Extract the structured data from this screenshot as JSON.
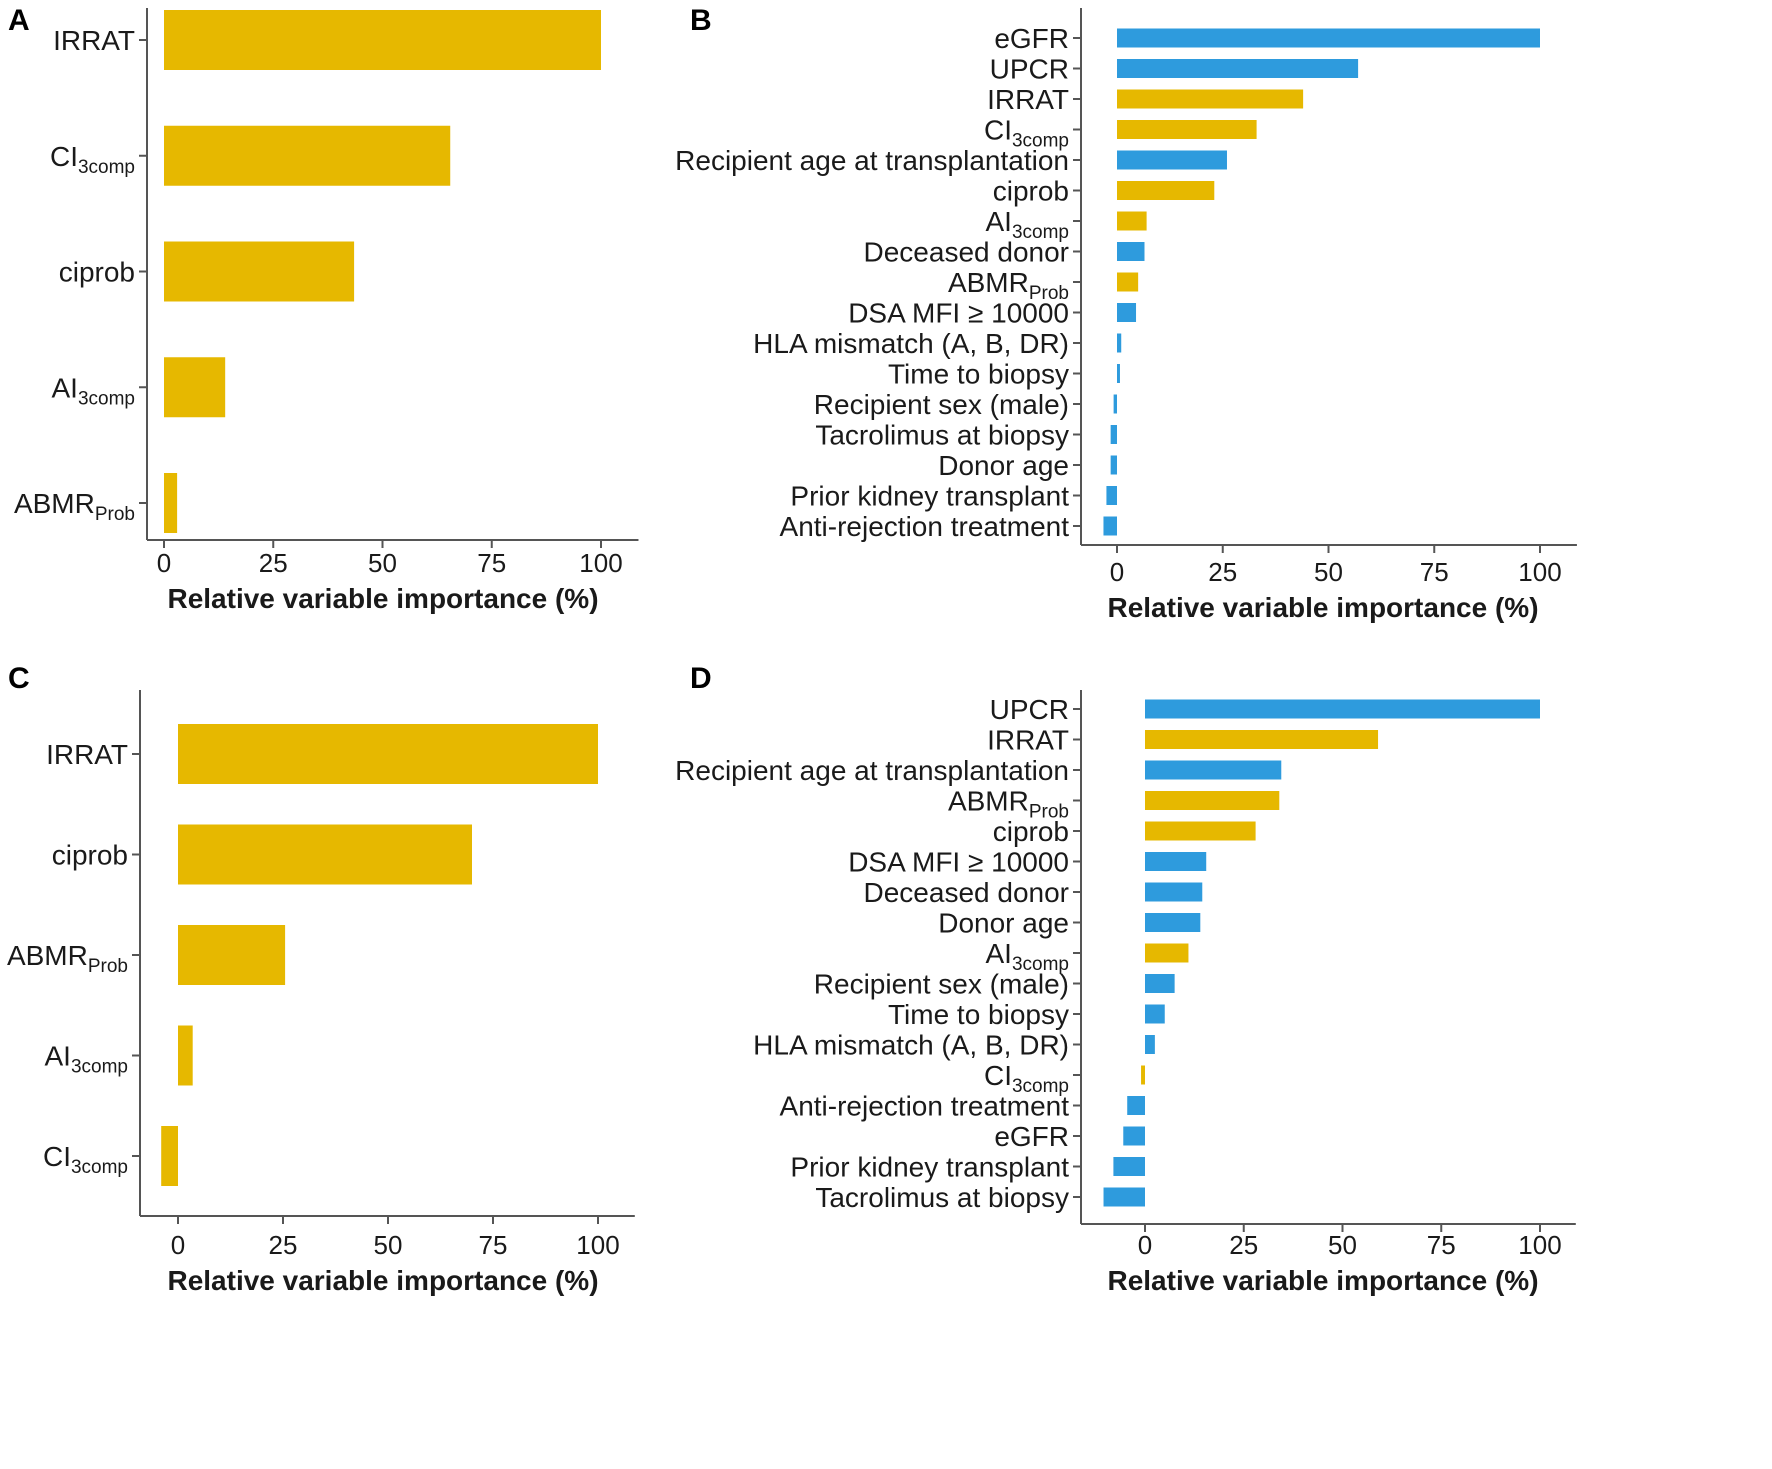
{
  "colors": {
    "model_variable": "#E6B800",
    "clinical_variable": "#2E9BDD",
    "axis": "#555555",
    "text": "#1a1a1a"
  },
  "chart_data": [
    {
      "panel": "A",
      "type": "bar",
      "orientation": "horizontal",
      "xlabel": "Relative variable importance (%)",
      "xlim": [
        -4,
        104
      ],
      "xticks": [
        "0",
        "25",
        "50",
        "75",
        "100"
      ],
      "bars": [
        {
          "label": "IRRAT",
          "value": 100,
          "group": "model"
        },
        {
          "label": "CI",
          "sub": "3comp",
          "value": 65.5,
          "group": "model"
        },
        {
          "label": "ciprob",
          "value": 43.5,
          "group": "model"
        },
        {
          "label": "AI",
          "sub": "3comp",
          "value": 14,
          "group": "model"
        },
        {
          "label": "ABMR",
          "sub": "Prob",
          "value": 3,
          "group": "model"
        }
      ]
    },
    {
      "panel": "B",
      "type": "bar",
      "orientation": "horizontal",
      "xlabel": "Relative variable importance (%)",
      "xlim": [
        -8,
        104
      ],
      "xticks": [
        "0",
        "25",
        "50",
        "75",
        "100"
      ],
      "bars": [
        {
          "label": "eGFR",
          "value": 100,
          "group": "clinical"
        },
        {
          "label": "UPCR",
          "value": 57,
          "group": "clinical"
        },
        {
          "label": "IRRAT",
          "value": 44,
          "group": "model"
        },
        {
          "label": "CI",
          "sub": "3comp",
          "value": 33,
          "group": "model"
        },
        {
          "label": "Recipient age at transplantation",
          "value": 26,
          "group": "clinical"
        },
        {
          "label": "ciprob",
          "value": 23,
          "group": "model"
        },
        {
          "label": "AI",
          "sub": "3comp",
          "value": 7,
          "group": "model"
        },
        {
          "label": "Deceased donor",
          "value": 6.5,
          "group": "clinical"
        },
        {
          "label": "ABMR",
          "sub": "Prob",
          "value": 5,
          "group": "model"
        },
        {
          "label": "DSA MFI ≥ 10000",
          "value": 4.5,
          "group": "clinical"
        },
        {
          "label": "HLA mismatch (A, B, DR)",
          "value": 1,
          "group": "clinical"
        },
        {
          "label": "Time to biopsy",
          "value": 0.7,
          "group": "clinical"
        },
        {
          "label": "Recipient sex (male)",
          "value": -0.8,
          "group": "clinical"
        },
        {
          "label": "Tacrolimus at biopsy",
          "value": -1.5,
          "group": "clinical"
        },
        {
          "label": "Donor age",
          "value": -1.5,
          "group": "clinical"
        },
        {
          "label": "Prior kidney transplant",
          "value": -2.5,
          "group": "clinical"
        },
        {
          "label": "Anti-rejection treatment",
          "value": -3.2,
          "group": "clinical"
        }
      ]
    },
    {
      "panel": "C",
      "type": "bar",
      "orientation": "horizontal",
      "xlabel": "Relative variable importance (%)",
      "xlim": [
        -8,
        104
      ],
      "xticks": [
        "0",
        "25",
        "50",
        "75",
        "100"
      ],
      "bars": [
        {
          "label": "IRRAT",
          "value": 100,
          "group": "model"
        },
        {
          "label": "ciprob",
          "value": 70,
          "group": "model"
        },
        {
          "label": "ABMR",
          "sub": "Prob",
          "value": 25.5,
          "group": "model"
        },
        {
          "label": "AI",
          "sub": "3comp",
          "value": 3.5,
          "group": "model"
        },
        {
          "label": "CI",
          "sub": "3comp",
          "value": -4,
          "group": "model"
        }
      ]
    },
    {
      "panel": "D",
      "type": "bar",
      "orientation": "horizontal",
      "xlabel": "Relative variable importance (%)",
      "xlim": [
        -18,
        104
      ],
      "xticks": [
        "0",
        "25",
        "50",
        "75",
        "100"
      ],
      "bars": [
        {
          "label": "UPCR",
          "value": 100,
          "group": "clinical"
        },
        {
          "label": "IRRAT",
          "value": 59,
          "group": "model"
        },
        {
          "label": "Recipient age at transplantation",
          "value": 34.5,
          "group": "clinical"
        },
        {
          "label": "ABMR",
          "sub": "Prob",
          "value": 34,
          "group": "model"
        },
        {
          "label": "ciprob",
          "value": 28,
          "group": "model"
        },
        {
          "label": "DSA MFI ≥ 10000",
          "value": 15.5,
          "group": "clinical"
        },
        {
          "label": "Deceased donor",
          "value": 14.5,
          "group": "clinical"
        },
        {
          "label": "Donor age",
          "value": 14,
          "group": "clinical"
        },
        {
          "label": "AI",
          "sub": "3comp",
          "value": 11,
          "group": "model"
        },
        {
          "label": "Recipient sex (male)",
          "value": 7.5,
          "group": "clinical"
        },
        {
          "label": "Time to biopsy",
          "value": 5,
          "group": "clinical"
        },
        {
          "label": "HLA mismatch (A, B, DR)",
          "value": 2.5,
          "group": "clinical"
        },
        {
          "label": "CI",
          "sub": "3comp",
          "value": -1,
          "group": "model"
        },
        {
          "label": "Anti-rejection treatment",
          "value": -4.5,
          "group": "clinical"
        },
        {
          "label": "eGFR",
          "value": -5.5,
          "group": "clinical"
        },
        {
          "label": "Prior kidney transplant",
          "value": -8,
          "group": "clinical"
        },
        {
          "label": "Tacrolimus at biopsy",
          "value": -10.5,
          "group": "clinical"
        }
      ]
    }
  ]
}
